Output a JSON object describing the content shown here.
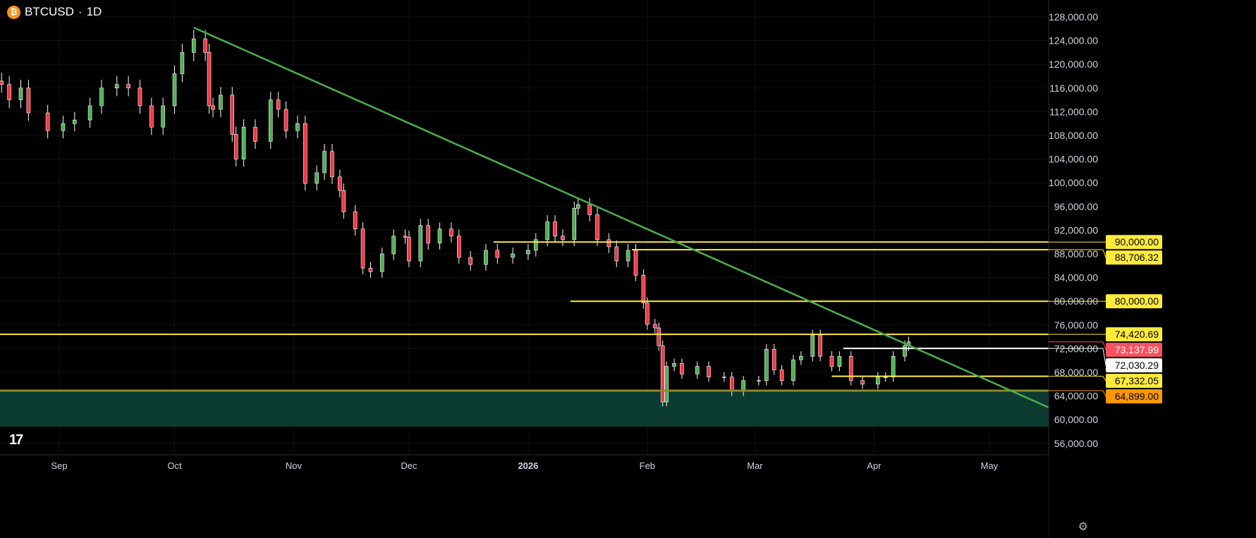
{
  "header": {
    "symbol": "BTCUSD",
    "separator": "·",
    "interval": "1D",
    "icon": "bitcoin-icon"
  },
  "logo": "TV",
  "settings_icon": "gear-icon",
  "colors": {
    "up": "#4caf50",
    "down": "#f23645",
    "wick": "#ffffff",
    "trendline": "#4caf50",
    "level": "#ffeb3b",
    "support": "#8a8a2e",
    "zone": "#0b3b30",
    "current": "#f7525f"
  },
  "chart_data": {
    "type": "candlestick",
    "title": "BTCUSD · 1D",
    "ylim": [
      54000,
      130000
    ],
    "y_ticks": [
      "128,000.00",
      "124,000.00",
      "120,000.00",
      "116,000.00",
      "112,000.00",
      "108,000.00",
      "104,000.00",
      "100,000.00",
      "96,000.00",
      "92,000.00",
      "88,000.00",
      "84,000.00",
      "80,000.00",
      "76,000.00",
      "72,000.00",
      "68,000.00",
      "64,000.00",
      "60,000.00",
      "56,000.00"
    ],
    "x_ticks": [
      {
        "label": "Sep",
        "date": "2025-09-01"
      },
      {
        "label": "Oct",
        "date": "2025-10-01"
      },
      {
        "label": "Nov",
        "date": "2025-11-01"
      },
      {
        "label": "Dec",
        "date": "2025-12-01"
      },
      {
        "label": "2026",
        "date": "2026-01-01"
      },
      {
        "label": "Feb",
        "date": "2026-02-01"
      },
      {
        "label": "Mar",
        "date": "2026-03-01"
      },
      {
        "label": "Apr",
        "date": "2026-04-01"
      },
      {
        "label": "May",
        "date": "2026-05-01"
      }
    ],
    "closes": [
      [
        "2025-08-17",
        116600
      ],
      [
        "2025-08-19",
        114000
      ],
      [
        "2025-08-22",
        116000
      ],
      [
        "2025-08-24",
        111800
      ],
      [
        "2025-08-29",
        108800
      ],
      [
        "2025-09-02",
        110000
      ],
      [
        "2025-09-05",
        110600
      ],
      [
        "2025-09-09",
        113000
      ],
      [
        "2025-09-12",
        116000
      ],
      [
        "2025-09-16",
        116600
      ],
      [
        "2025-09-19",
        116000
      ],
      [
        "2025-09-22",
        113000
      ],
      [
        "2025-09-25",
        109400
      ],
      [
        "2025-09-28",
        113000
      ],
      [
        "2025-10-01",
        118400
      ],
      [
        "2025-10-03",
        122000
      ],
      [
        "2025-10-06",
        124300
      ],
      [
        "2025-10-09",
        122000
      ],
      [
        "2025-10-10",
        113000
      ],
      [
        "2025-10-11",
        112400
      ],
      [
        "2025-10-13",
        114800
      ],
      [
        "2025-10-16",
        108200
      ],
      [
        "2025-10-17",
        104000
      ],
      [
        "2025-10-19",
        109400
      ],
      [
        "2025-10-22",
        107000
      ],
      [
        "2025-10-26",
        114000
      ],
      [
        "2025-10-28",
        112400
      ],
      [
        "2025-10-30",
        108800
      ],
      [
        "2025-11-02",
        110000
      ],
      [
        "2025-11-04",
        99900
      ],
      [
        "2025-11-07",
        101700
      ],
      [
        "2025-11-09",
        105300
      ],
      [
        "2025-11-11",
        101000
      ],
      [
        "2025-11-13",
        98700
      ],
      [
        "2025-11-14",
        95100
      ],
      [
        "2025-11-17",
        92200
      ],
      [
        "2025-11-19",
        85600
      ],
      [
        "2025-11-21",
        85000
      ],
      [
        "2025-11-24",
        88000
      ],
      [
        "2025-11-27",
        91000
      ],
      [
        "2025-11-30",
        90800
      ],
      [
        "2025-12-01",
        86800
      ],
      [
        "2025-12-04",
        92800
      ],
      [
        "2025-12-06",
        89800
      ],
      [
        "2025-12-09",
        92200
      ],
      [
        "2025-12-12",
        91000
      ],
      [
        "2025-12-14",
        87400
      ],
      [
        "2025-12-17",
        86200
      ],
      [
        "2025-12-21",
        88600
      ],
      [
        "2025-12-24",
        87400
      ],
      [
        "2025-12-28",
        88000
      ],
      [
        "2026-01-01",
        88600
      ],
      [
        "2026-01-03",
        90400
      ],
      [
        "2026-01-06",
        93400
      ],
      [
        "2026-01-08",
        91000
      ],
      [
        "2026-01-10",
        90400
      ],
      [
        "2026-01-13",
        95700
      ],
      [
        "2026-01-14",
        96300
      ],
      [
        "2026-01-17",
        94600
      ],
      [
        "2026-01-19",
        90400
      ],
      [
        "2026-01-22",
        89200
      ],
      [
        "2026-01-24",
        86800
      ],
      [
        "2026-01-27",
        88600
      ],
      [
        "2026-01-29",
        84400
      ],
      [
        "2026-01-31",
        79700
      ],
      [
        "2026-02-01",
        76100
      ],
      [
        "2026-02-03",
        75500
      ],
      [
        "2026-02-04",
        72500
      ],
      [
        "2026-02-05",
        63000
      ],
      [
        "2026-02-06",
        69000
      ],
      [
        "2026-02-08",
        69500
      ],
      [
        "2026-02-10",
        67700
      ],
      [
        "2026-02-14",
        69000
      ],
      [
        "2026-02-17",
        67200
      ],
      [
        "2026-02-21",
        67200
      ],
      [
        "2026-02-23",
        64800
      ],
      [
        "2026-02-26",
        66600
      ],
      [
        "2026-03-02",
        66600
      ],
      [
        "2026-03-04",
        71900
      ],
      [
        "2026-03-06",
        68400
      ],
      [
        "2026-03-08",
        66600
      ],
      [
        "2026-03-11",
        70100
      ],
      [
        "2026-03-13",
        70700
      ],
      [
        "2026-03-16",
        74300
      ],
      [
        "2026-03-18",
        70700
      ],
      [
        "2026-03-21",
        69000
      ],
      [
        "2026-03-23",
        70700
      ],
      [
        "2026-03-26",
        66600
      ],
      [
        "2026-03-29",
        66000
      ],
      [
        "2026-04-02",
        67200
      ],
      [
        "2026-04-04",
        67200
      ],
      [
        "2026-04-06",
        70700
      ],
      [
        "2026-04-09",
        72500
      ],
      [
        "2026-04-10",
        73138
      ]
    ],
    "trendline": {
      "from": [
        "2025-10-06",
        126200
      ],
      "to": [
        "2026-05-17",
        61900
      ]
    },
    "levels": [
      {
        "price": 90000,
        "label": "90,000.00",
        "from": "2025-12-23",
        "color": "#ffeb3b"
      },
      {
        "price": 88706.32,
        "label": "88,706.32",
        "from": "2026-01-28",
        "color": "#ffeb3b"
      },
      {
        "price": 80000,
        "label": "80,000.00",
        "from": "2026-01-12",
        "color": "#ffeb3b"
      },
      {
        "price": 74420.69,
        "label": "74,420.69",
        "from": "2025-08-16",
        "color": "#ffeb3b"
      },
      {
        "price": 72030.29,
        "label": "72,030.29",
        "from": "2026-03-24",
        "color": "#ffffff"
      },
      {
        "price": 67332.05,
        "label": "67,332.05",
        "from": "2026-03-21",
        "color": "#ffeb3b"
      },
      {
        "price": 64899.0,
        "label": "64,899.00",
        "from": "2025-08-16",
        "color": "#8a8a2e",
        "label_color": "#ff9800"
      }
    ],
    "zone": {
      "top": 64899,
      "bottom": 58800
    },
    "current_price": {
      "price": 73137.99,
      "label": "73,137.99"
    }
  }
}
